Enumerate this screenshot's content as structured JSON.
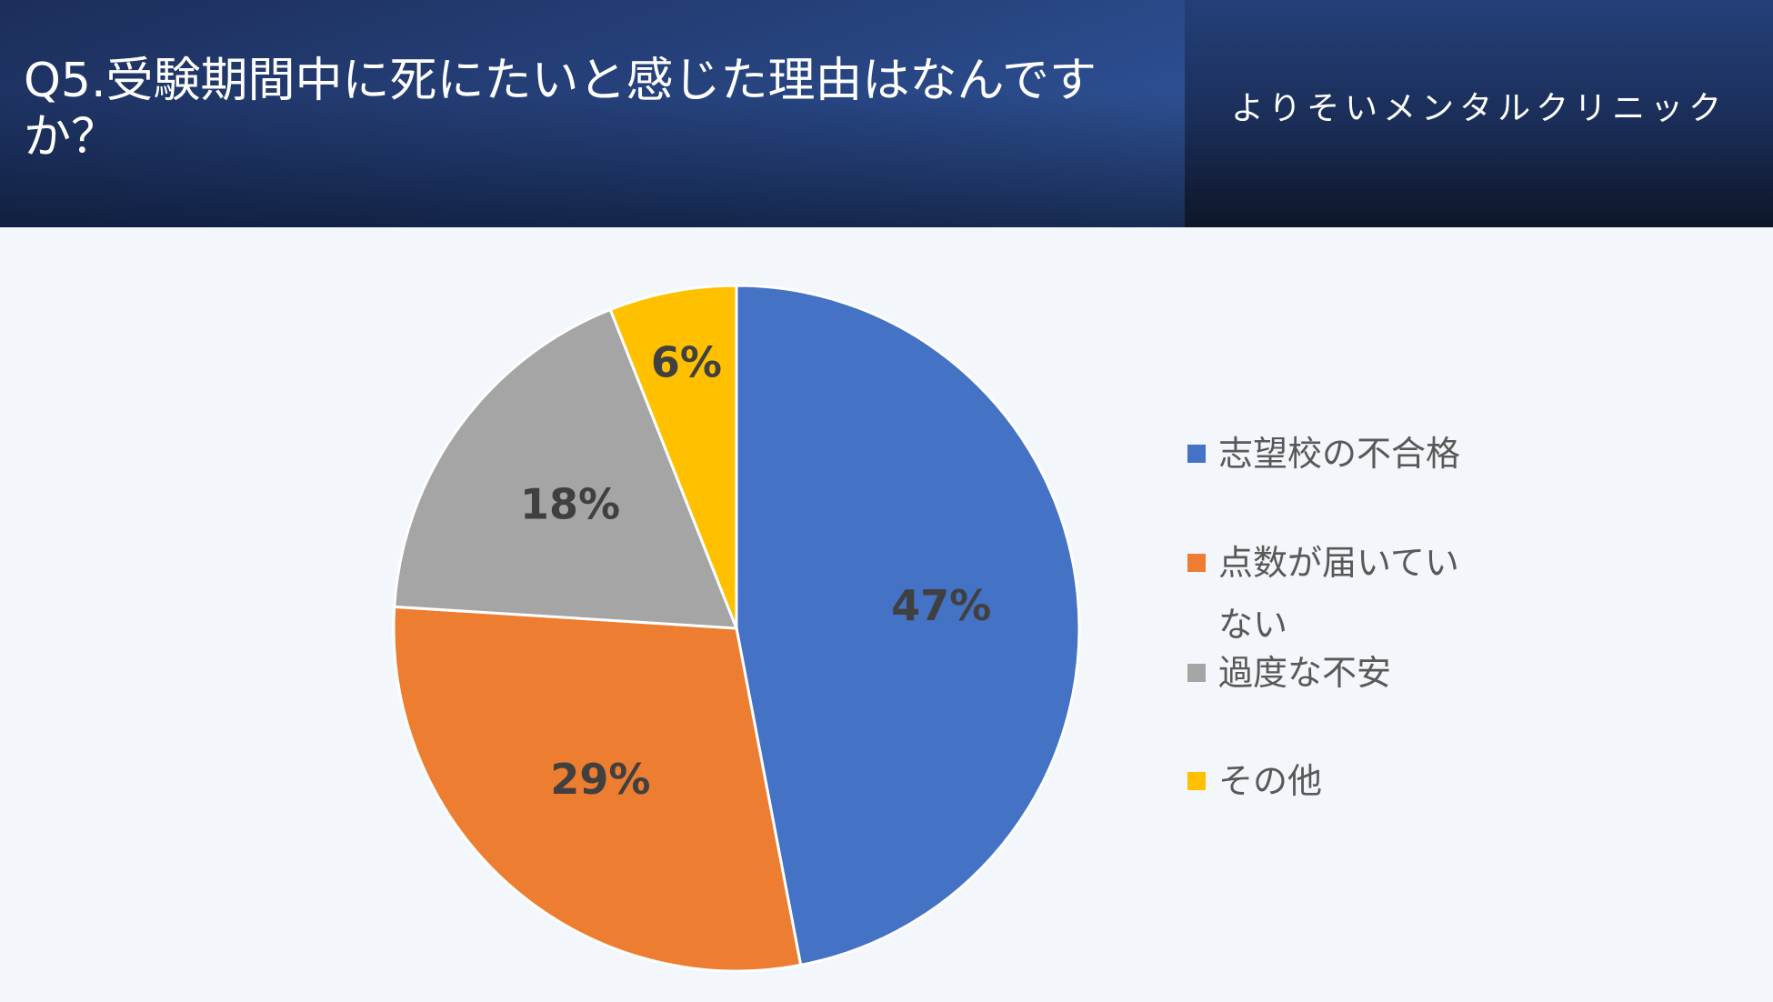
{
  "chart_data": {
    "type": "pie",
    "title": "Q5.受験期間中に死にたいと感じた理由はなんですか？",
    "brand": "よりそいメンタルクリニック",
    "categories": [
      "志望校の不合格",
      "点数が届いていない",
      "過度な不安",
      "その他"
    ],
    "values": [
      47,
      29,
      18,
      6
    ],
    "value_labels": [
      "47%",
      "29%",
      "18%",
      "6%"
    ],
    "colors": [
      "#4472c4",
      "#ed7d31",
      "#a5a5a5",
      "#ffc000"
    ],
    "legend": "right"
  }
}
